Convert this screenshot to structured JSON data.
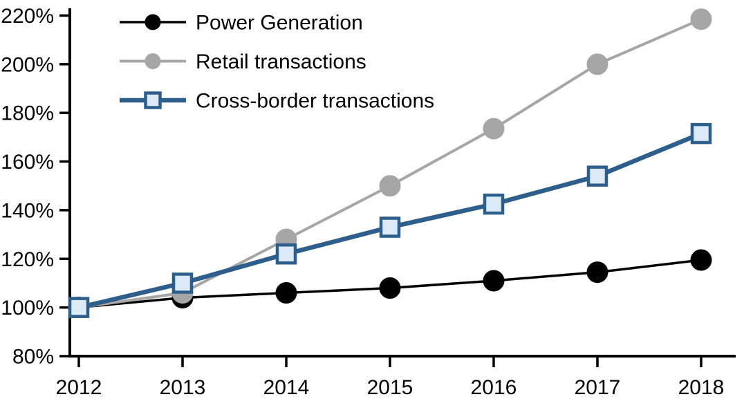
{
  "chart_data": {
    "type": "line",
    "title": "",
    "xlabel": "",
    "ylabel": "",
    "grid": false,
    "legend_position": "top-left-inside",
    "categories": [
      "2012",
      "2013",
      "2014",
      "2015",
      "2016",
      "2017",
      "2018"
    ],
    "series": [
      {
        "name": "Power Generation",
        "values": [
          100,
          104,
          106,
          108,
          111,
          114.5,
          119.5
        ],
        "color": "#000000",
        "marker": "circle",
        "marker_fill": "#000000",
        "line_width": 3.5
      },
      {
        "name": "Retail transactions",
        "values": [
          100,
          106,
          128,
          150,
          173.5,
          200,
          218.5
        ],
        "color": "#a6a6a6",
        "marker": "circle",
        "marker_fill": "#a6a6a6",
        "line_width": 4
      },
      {
        "name": "Cross-border transactions",
        "values": [
          100,
          110,
          122,
          133,
          142.5,
          154,
          171.5
        ],
        "color": "#2e5e8c",
        "marker": "square",
        "marker_fill": "#dce9f6",
        "line_width": 6.5
      }
    ],
    "ylim": [
      80,
      220
    ],
    "ytick_step": 20,
    "yticklabels": [
      "80%",
      "100%",
      "120%",
      "140%",
      "160%",
      "180%",
      "200%",
      "220%"
    ],
    "xticklabels": [
      "2012",
      "2013",
      "2014",
      "2015",
      "2016",
      "2017",
      "2018"
    ],
    "axis_color": "#000000"
  }
}
